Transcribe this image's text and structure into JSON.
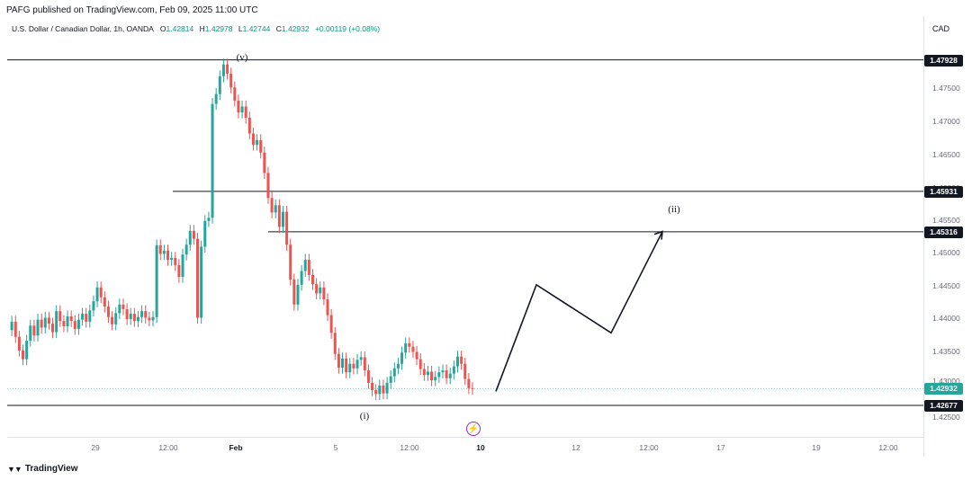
{
  "header": {
    "publisher": "PAFG published on TradingView.com, Feb 09, 2025 11:00 UTC"
  },
  "symbol": {
    "name": "U.S. Dollar / Canadian Dollar, 1h, OANDA",
    "open_label": "O",
    "open": "1.42814",
    "high_label": "H",
    "high": "1.42978",
    "low_label": "L",
    "low": "1.42744",
    "close_label": "C",
    "close": "1.42932",
    "change": "+0.00119 (+0.08%)"
  },
  "currency": "CAD",
  "price_axis": {
    "labels": [
      "1.47500",
      "1.47000",
      "1.46500",
      "1.46000",
      "1.45500",
      "1.45000",
      "1.44500",
      "1.44000",
      "1.43500",
      "1.43000",
      "1.42500"
    ],
    "badges": [
      "1.47928",
      "1.45931",
      "1.45316",
      "1.42677"
    ],
    "current_price": "1.42932"
  },
  "time_axis": {
    "labels": [
      "29",
      "12:00",
      "Feb",
      "5",
      "12:00",
      "10",
      "12",
      "12:00",
      "17",
      "19",
      "12:00"
    ]
  },
  "wave_labels": {
    "v": "(v)",
    "i": "(i)",
    "ii": "(ii)"
  },
  "chart_data": {
    "type": "candlestick",
    "symbol": "USDCAD",
    "interval": "1h",
    "up_color": "#26a69a",
    "down_color": "#ef5350",
    "horizontal_levels": [
      1.47928,
      1.45931,
      1.45316,
      1.42677
    ],
    "current_price": 1.42932,
    "price_range": [
      1.42,
      1.485
    ],
    "series": [
      1.4382,
      1.4395,
      1.4372,
      1.4351,
      1.4338,
      1.4366,
      1.4389,
      1.4374,
      1.4398,
      1.4386,
      1.4401,
      1.4392,
      1.4379,
      1.4411,
      1.4396,
      1.4388,
      1.4403,
      1.4396,
      1.4384,
      1.4398,
      1.4407,
      1.4395,
      1.4412,
      1.4426,
      1.4447,
      1.4432,
      1.4418,
      1.4402,
      1.4391,
      1.4408,
      1.4421,
      1.4414,
      1.4399,
      1.4407,
      1.4396,
      1.4402,
      1.4411,
      1.4401,
      1.4397,
      1.4402,
      1.4511,
      1.4498,
      1.4503,
      1.4489,
      1.4492,
      1.4481,
      1.4463,
      1.4497,
      1.4512,
      1.4533,
      1.4521,
      1.4401,
      1.4509,
      1.4548,
      1.4553,
      1.4726,
      1.4741,
      1.4768,
      1.4786,
      1.4772,
      1.4751,
      1.4731,
      1.4713,
      1.4722,
      1.4705,
      1.4681,
      1.4664,
      1.4671,
      1.4652,
      1.4621,
      1.4583,
      1.4561,
      1.4572,
      1.4539,
      1.4562,
      1.4512,
      1.4459,
      1.4421,
      1.4451,
      1.4472,
      1.4489,
      1.4466,
      1.4452,
      1.4438,
      1.4447,
      1.4429,
      1.4405,
      1.4378,
      1.4346,
      1.4325,
      1.4339,
      1.4318,
      1.4331,
      1.4324,
      1.4337,
      1.4341,
      1.4321,
      1.4302,
      1.4291,
      1.4285,
      1.4298,
      1.4286,
      1.4302,
      1.4312,
      1.4324,
      1.4331,
      1.4348,
      1.4362,
      1.4357,
      1.4349,
      1.4338,
      1.4323,
      1.4314,
      1.4319,
      1.4306,
      1.4311,
      1.4318,
      1.4321,
      1.4309,
      1.4316,
      1.4327,
      1.4342,
      1.4331,
      1.4308,
      1.4294,
      1.4293
    ],
    "projection": [
      1.4289,
      1.4451,
      1.4378,
      1.4532
    ]
  }
}
